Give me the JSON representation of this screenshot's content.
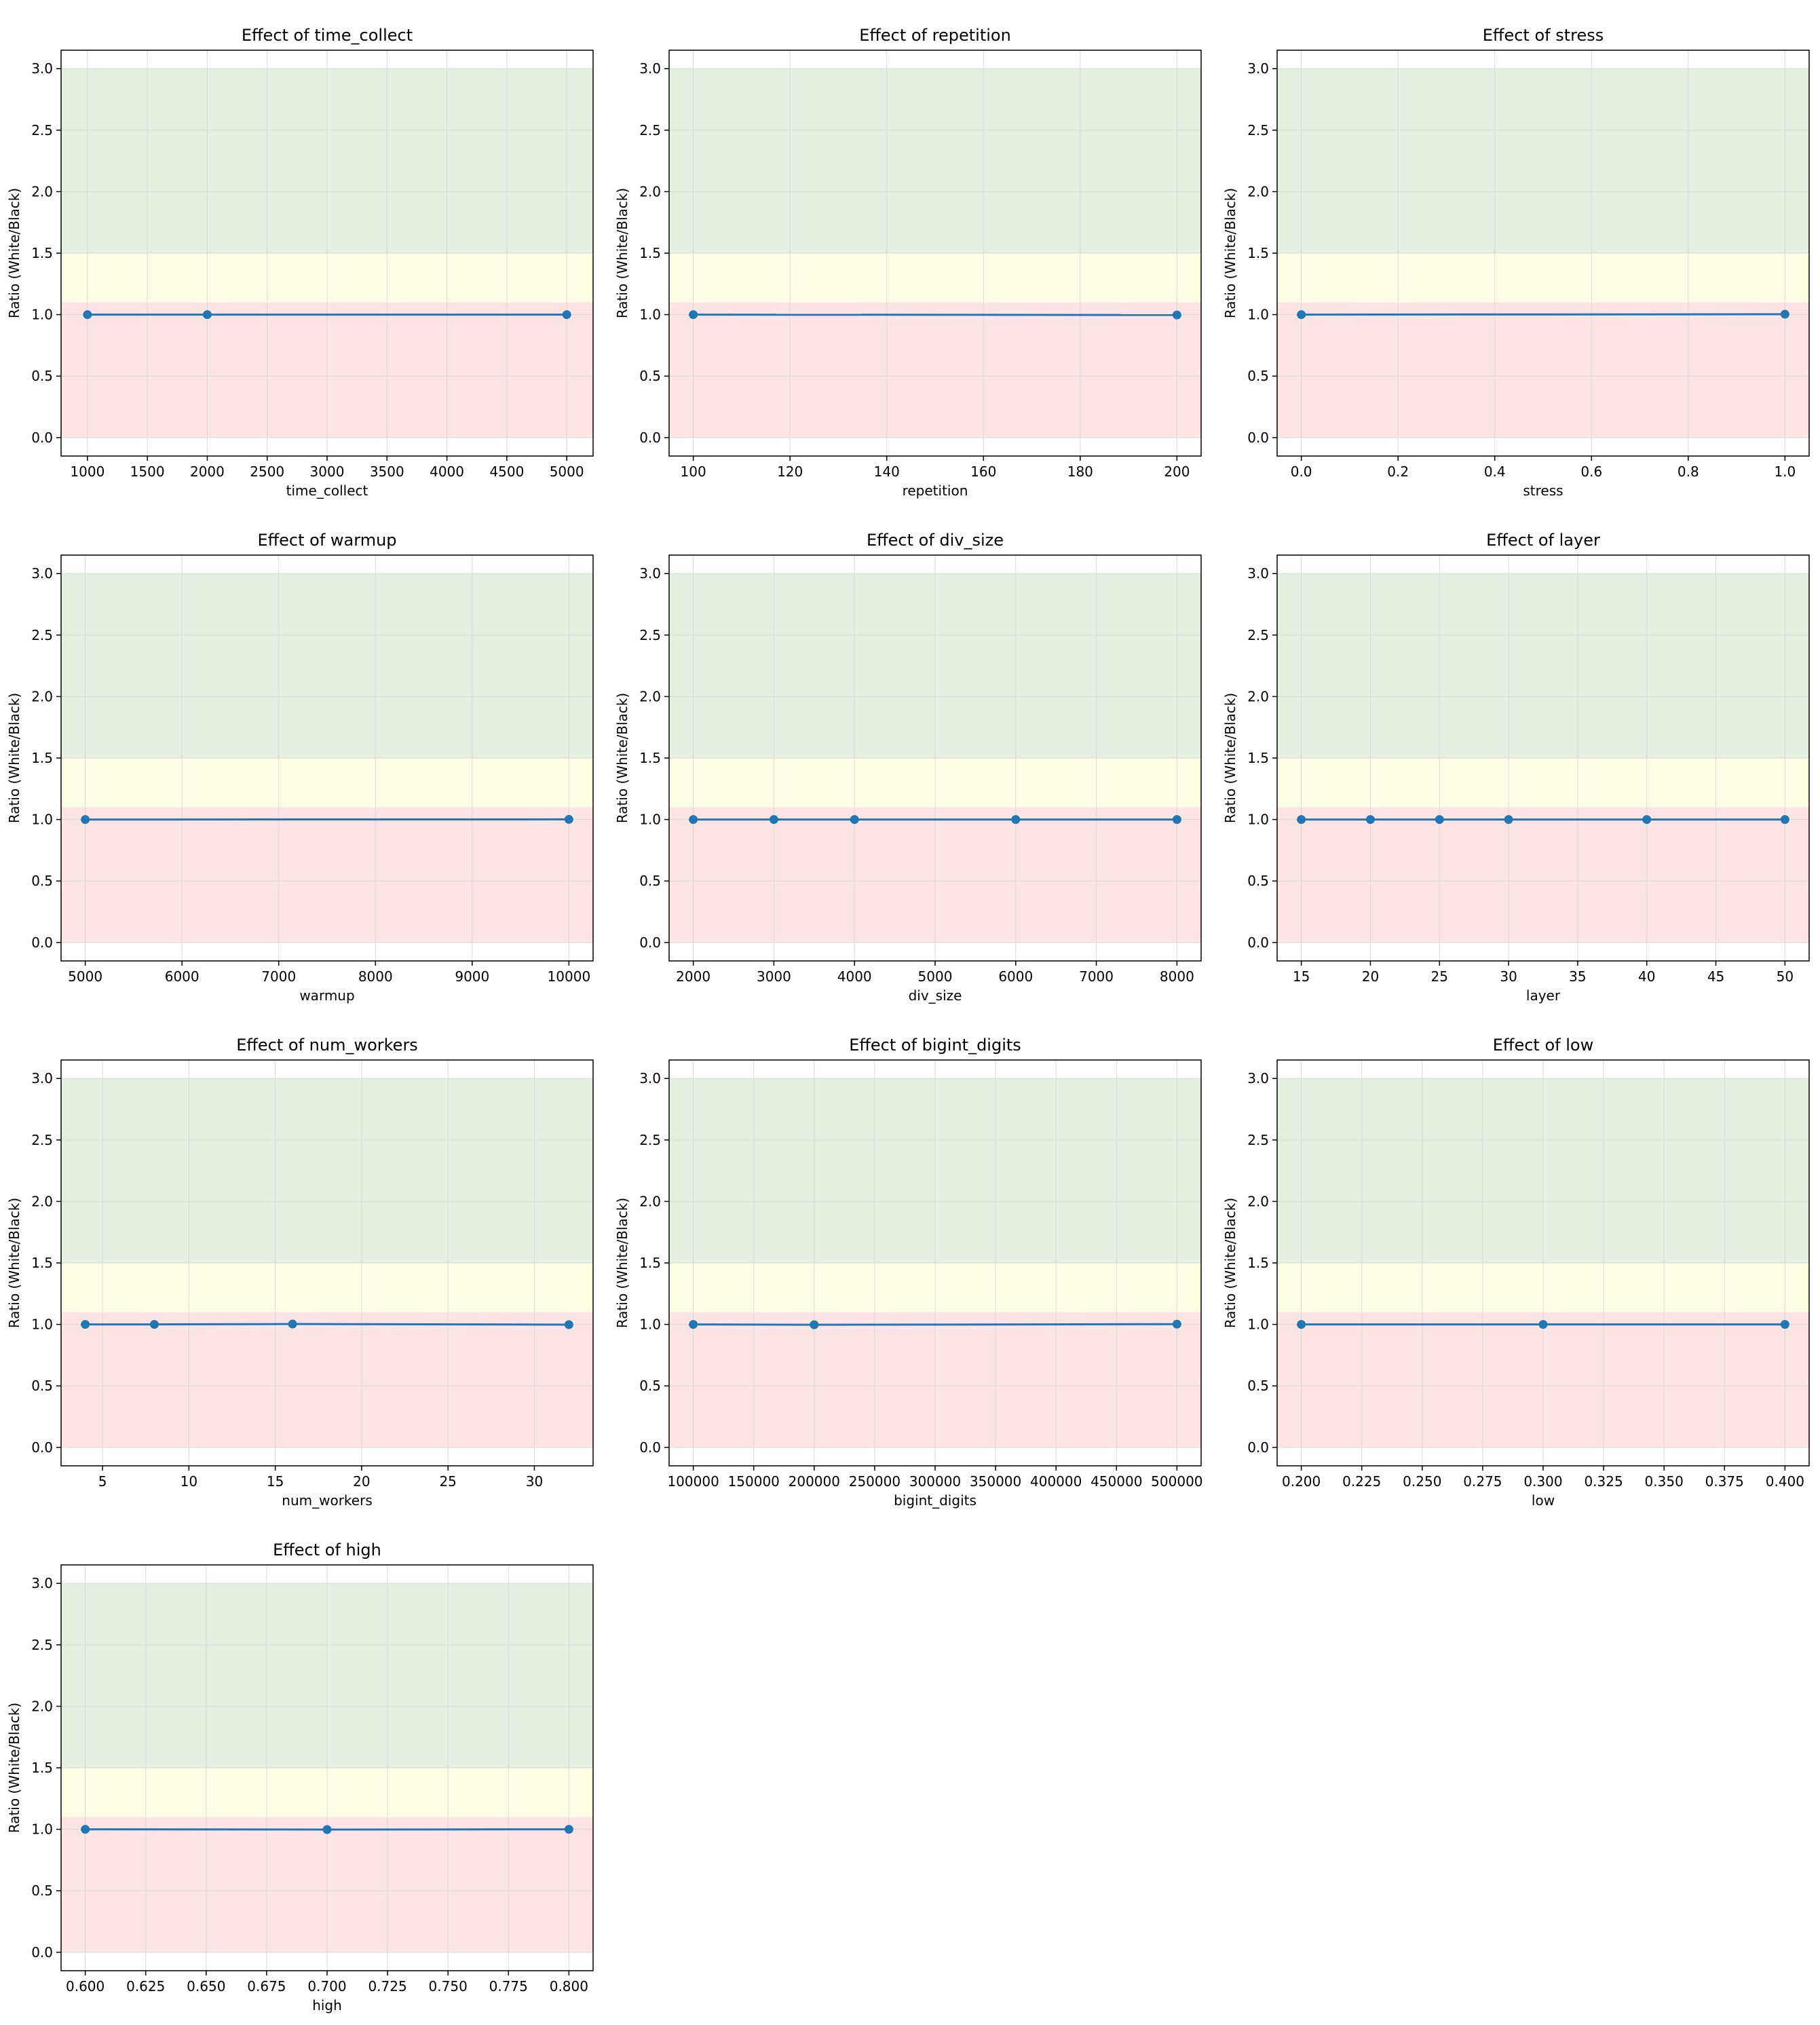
{
  "figure": {
    "colors": {
      "series": "#1f77b4",
      "band_good": "#e5f0e3",
      "band_neutral": "#ffffe5",
      "band_bad": "#ffe4e6",
      "grid": "#d9d9d9",
      "axes": "#000000"
    }
  },
  "chart_data": [
    {
      "type": "line",
      "title": "Effect of time_collect",
      "xlabel": "time_collect",
      "ylabel": "Ratio (White/Black)",
      "xlim": [
        780,
        5220
      ],
      "ylim": [
        -0.15,
        3.15
      ],
      "xticks": [
        1000,
        1500,
        2000,
        2500,
        3000,
        3500,
        4000,
        4500,
        5000
      ],
      "xtick_labels": [
        "1000",
        "1500",
        "2000",
        "2500",
        "3000",
        "3500",
        "4000",
        "4500",
        "5000"
      ],
      "yticks": [
        0.0,
        0.5,
        1.0,
        1.5,
        2.0,
        2.5,
        3.0
      ],
      "ytick_labels": [
        "0.0",
        "0.5",
        "1.0",
        "1.5",
        "2.0",
        "2.5",
        "3.0"
      ],
      "bands": [
        {
          "name": "bad",
          "from": 0.0,
          "to": 1.1
        },
        {
          "name": "neutral",
          "from": 1.1,
          "to": 1.5
        },
        {
          "name": "good",
          "from": 1.5,
          "to": 3.0
        }
      ],
      "grid": true,
      "marker": "o",
      "x": [
        1000,
        2000,
        5000
      ],
      "y": [
        1.0,
        1.0,
        1.0
      ]
    },
    {
      "type": "line",
      "title": "Effect of repetition",
      "xlabel": "repetition",
      "ylabel": "Ratio (White/Black)",
      "xlim": [
        95,
        205
      ],
      "ylim": [
        -0.15,
        3.15
      ],
      "xticks": [
        100,
        120,
        140,
        160,
        180,
        200
      ],
      "xtick_labels": [
        "100",
        "120",
        "140",
        "160",
        "180",
        "200"
      ],
      "yticks": [
        0.0,
        0.5,
        1.0,
        1.5,
        2.0,
        2.5,
        3.0
      ],
      "ytick_labels": [
        "0.0",
        "0.5",
        "1.0",
        "1.5",
        "2.0",
        "2.5",
        "3.0"
      ],
      "bands": [
        {
          "name": "bad",
          "from": 0.0,
          "to": 1.1
        },
        {
          "name": "neutral",
          "from": 1.1,
          "to": 1.5
        },
        {
          "name": "good",
          "from": 1.5,
          "to": 3.0
        }
      ],
      "grid": true,
      "marker": "o",
      "x": [
        100,
        200
      ],
      "y": [
        1.0,
        0.997
      ]
    },
    {
      "type": "line",
      "title": "Effect of stress",
      "xlabel": "stress",
      "ylabel": "Ratio (White/Black)",
      "xlim": [
        -0.05,
        1.05
      ],
      "ylim": [
        -0.15,
        3.15
      ],
      "xticks": [
        0.0,
        0.2,
        0.4,
        0.6,
        0.8,
        1.0
      ],
      "xtick_labels": [
        "0.0",
        "0.2",
        "0.4",
        "0.6",
        "0.8",
        "1.0"
      ],
      "yticks": [
        0.0,
        0.5,
        1.0,
        1.5,
        2.0,
        2.5,
        3.0
      ],
      "ytick_labels": [
        "0.0",
        "0.5",
        "1.0",
        "1.5",
        "2.0",
        "2.5",
        "3.0"
      ],
      "bands": [
        {
          "name": "bad",
          "from": 0.0,
          "to": 1.1
        },
        {
          "name": "neutral",
          "from": 1.1,
          "to": 1.5
        },
        {
          "name": "good",
          "from": 1.5,
          "to": 3.0
        }
      ],
      "grid": true,
      "marker": "o",
      "x": [
        0.0,
        1.0
      ],
      "y": [
        1.0,
        1.003
      ]
    },
    {
      "type": "line",
      "title": "Effect of warmup",
      "xlabel": "warmup",
      "ylabel": "Ratio (White/Black)",
      "xlim": [
        4750,
        10250
      ],
      "ylim": [
        -0.15,
        3.15
      ],
      "xticks": [
        5000,
        6000,
        7000,
        8000,
        9000,
        10000
      ],
      "xtick_labels": [
        "5000",
        "6000",
        "7000",
        "8000",
        "9000",
        "10000"
      ],
      "yticks": [
        0.0,
        0.5,
        1.0,
        1.5,
        2.0,
        2.5,
        3.0
      ],
      "ytick_labels": [
        "0.0",
        "0.5",
        "1.0",
        "1.5",
        "2.0",
        "2.5",
        "3.0"
      ],
      "bands": [
        {
          "name": "bad",
          "from": 0.0,
          "to": 1.1
        },
        {
          "name": "neutral",
          "from": 1.1,
          "to": 1.5
        },
        {
          "name": "good",
          "from": 1.5,
          "to": 3.0
        }
      ],
      "grid": true,
      "marker": "o",
      "x": [
        5000,
        10000
      ],
      "y": [
        1.0,
        1.001
      ]
    },
    {
      "type": "line",
      "title": "Effect of div_size",
      "xlabel": "div_size",
      "ylabel": "Ratio (White/Black)",
      "xlim": [
        1700,
        8300
      ],
      "ylim": [
        -0.15,
        3.15
      ],
      "xticks": [
        2000,
        3000,
        4000,
        5000,
        6000,
        7000,
        8000
      ],
      "xtick_labels": [
        "2000",
        "3000",
        "4000",
        "5000",
        "6000",
        "7000",
        "8000"
      ],
      "yticks": [
        0.0,
        0.5,
        1.0,
        1.5,
        2.0,
        2.5,
        3.0
      ],
      "ytick_labels": [
        "0.0",
        "0.5",
        "1.0",
        "1.5",
        "2.0",
        "2.5",
        "3.0"
      ],
      "bands": [
        {
          "name": "bad",
          "from": 0.0,
          "to": 1.1
        },
        {
          "name": "neutral",
          "from": 1.1,
          "to": 1.5
        },
        {
          "name": "good",
          "from": 1.5,
          "to": 3.0
        }
      ],
      "grid": true,
      "marker": "o",
      "x": [
        2000,
        3000,
        4000,
        6000,
        8000
      ],
      "y": [
        1.0,
        1.0,
        1.0,
        1.0,
        1.0
      ]
    },
    {
      "type": "line",
      "title": "Effect of layer",
      "xlabel": "layer",
      "ylabel": "Ratio (White/Black)",
      "xlim": [
        13.25,
        51.75
      ],
      "ylim": [
        -0.15,
        3.15
      ],
      "xticks": [
        15,
        20,
        25,
        30,
        35,
        40,
        45,
        50
      ],
      "xtick_labels": [
        "15",
        "20",
        "25",
        "30",
        "35",
        "40",
        "45",
        "50"
      ],
      "yticks": [
        0.0,
        0.5,
        1.0,
        1.5,
        2.0,
        2.5,
        3.0
      ],
      "ytick_labels": [
        "0.0",
        "0.5",
        "1.0",
        "1.5",
        "2.0",
        "2.5",
        "3.0"
      ],
      "bands": [
        {
          "name": "bad",
          "from": 0.0,
          "to": 1.1
        },
        {
          "name": "neutral",
          "from": 1.1,
          "to": 1.5
        },
        {
          "name": "good",
          "from": 1.5,
          "to": 3.0
        }
      ],
      "grid": true,
      "marker": "o",
      "x": [
        15,
        20,
        25,
        30,
        40,
        50
      ],
      "y": [
        1.0,
        1.0,
        1.0,
        1.0,
        1.0,
        1.0
      ]
    },
    {
      "type": "line",
      "title": "Effect of num_workers",
      "xlabel": "num_workers",
      "ylabel": "Ratio (White/Black)",
      "xlim": [
        2.6,
        33.4
      ],
      "ylim": [
        -0.15,
        3.15
      ],
      "xticks": [
        5,
        10,
        15,
        20,
        25,
        30
      ],
      "xtick_labels": [
        "5",
        "10",
        "15",
        "20",
        "25",
        "30"
      ],
      "yticks": [
        0.0,
        0.5,
        1.0,
        1.5,
        2.0,
        2.5,
        3.0
      ],
      "ytick_labels": [
        "0.0",
        "0.5",
        "1.0",
        "1.5",
        "2.0",
        "2.5",
        "3.0"
      ],
      "bands": [
        {
          "name": "bad",
          "from": 0.0,
          "to": 1.1
        },
        {
          "name": "neutral",
          "from": 1.1,
          "to": 1.5
        },
        {
          "name": "good",
          "from": 1.5,
          "to": 3.0
        }
      ],
      "grid": true,
      "marker": "o",
      "x": [
        4,
        8,
        16,
        32
      ],
      "y": [
        1.0,
        1.0,
        1.003,
        0.998
      ]
    },
    {
      "type": "line",
      "title": "Effect of bigint_digits",
      "xlabel": "bigint_digits",
      "ylabel": "Ratio (White/Black)",
      "xlim": [
        80000,
        520000
      ],
      "ylim": [
        -0.15,
        3.15
      ],
      "xticks": [
        100000,
        150000,
        200000,
        250000,
        300000,
        350000,
        400000,
        450000,
        500000
      ],
      "xtick_labels": [
        "100000",
        "150000",
        "200000",
        "250000",
        "300000",
        "350000",
        "400000",
        "450000",
        "500000"
      ],
      "yticks": [
        0.0,
        0.5,
        1.0,
        1.5,
        2.0,
        2.5,
        3.0
      ],
      "ytick_labels": [
        "0.0",
        "0.5",
        "1.0",
        "1.5",
        "2.0",
        "2.5",
        "3.0"
      ],
      "bands": [
        {
          "name": "bad",
          "from": 0.0,
          "to": 1.1
        },
        {
          "name": "neutral",
          "from": 1.1,
          "to": 1.5
        },
        {
          "name": "good",
          "from": 1.5,
          "to": 3.0
        }
      ],
      "grid": true,
      "marker": "o",
      "x": [
        100000,
        200000,
        500000
      ],
      "y": [
        1.0,
        0.997,
        1.002
      ]
    },
    {
      "type": "line",
      "title": "Effect of low",
      "xlabel": "low",
      "ylabel": "Ratio (White/Black)",
      "xlim": [
        0.19,
        0.41
      ],
      "ylim": [
        -0.15,
        3.15
      ],
      "xticks": [
        0.2,
        0.225,
        0.25,
        0.275,
        0.3,
        0.325,
        0.35,
        0.375,
        0.4
      ],
      "xtick_labels": [
        "0.200",
        "0.225",
        "0.250",
        "0.275",
        "0.300",
        "0.325",
        "0.350",
        "0.375",
        "0.400"
      ],
      "yticks": [
        0.0,
        0.5,
        1.0,
        1.5,
        2.0,
        2.5,
        3.0
      ],
      "ytick_labels": [
        "0.0",
        "0.5",
        "1.0",
        "1.5",
        "2.0",
        "2.5",
        "3.0"
      ],
      "bands": [
        {
          "name": "bad",
          "from": 0.0,
          "to": 1.1
        },
        {
          "name": "neutral",
          "from": 1.1,
          "to": 1.5
        },
        {
          "name": "good",
          "from": 1.5,
          "to": 3.0
        }
      ],
      "grid": true,
      "marker": "o",
      "x": [
        0.2,
        0.3,
        0.4
      ],
      "y": [
        1.0,
        1.0,
        1.0
      ]
    },
    {
      "type": "line",
      "title": "Effect of high",
      "xlabel": "high",
      "ylabel": "Ratio (White/Black)",
      "xlim": [
        0.59,
        0.81
      ],
      "ylim": [
        -0.15,
        3.15
      ],
      "xticks": [
        0.6,
        0.625,
        0.65,
        0.675,
        0.7,
        0.725,
        0.75,
        0.775,
        0.8
      ],
      "xtick_labels": [
        "0.600",
        "0.625",
        "0.650",
        "0.675",
        "0.700",
        "0.725",
        "0.750",
        "0.775",
        "0.800"
      ],
      "yticks": [
        0.0,
        0.5,
        1.0,
        1.5,
        2.0,
        2.5,
        3.0
      ],
      "ytick_labels": [
        "0.0",
        "0.5",
        "1.0",
        "1.5",
        "2.0",
        "2.5",
        "3.0"
      ],
      "bands": [
        {
          "name": "bad",
          "from": 0.0,
          "to": 1.1
        },
        {
          "name": "neutral",
          "from": 1.1,
          "to": 1.5
        },
        {
          "name": "good",
          "from": 1.5,
          "to": 3.0
        }
      ],
      "grid": true,
      "marker": "o",
      "x": [
        0.6,
        0.7,
        0.8
      ],
      "y": [
        1.0,
        0.998,
        1.0
      ]
    }
  ]
}
